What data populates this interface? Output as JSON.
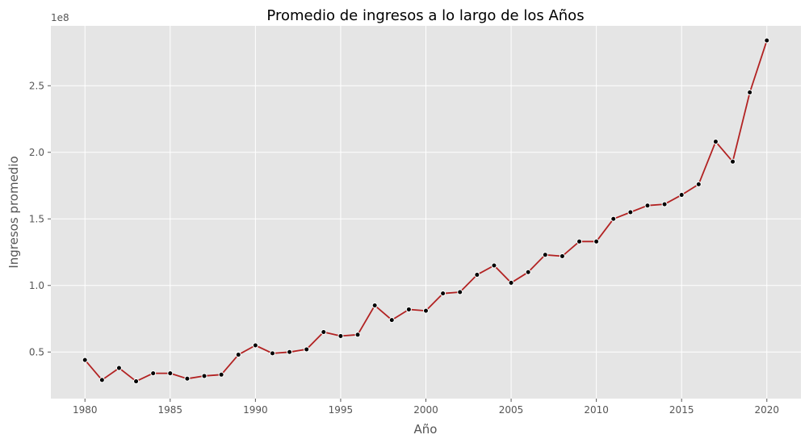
{
  "chart_data": {
    "type": "line",
    "title": "Promedio de ingresos a lo largo de los Años",
    "xlabel": "Año",
    "ylabel": "Ingresos promedio",
    "y_offset_label": "1e8",
    "xlim": [
      1978,
      2022
    ],
    "ylim": [
      0.15,
      2.95
    ],
    "x_ticks": [
      1980,
      1985,
      1990,
      1995,
      2000,
      2005,
      2010,
      2015,
      2020
    ],
    "x_tick_labels": [
      "1980",
      "1985",
      "1990",
      "1995",
      "2000",
      "2005",
      "2010",
      "2015",
      "2020"
    ],
    "y_ticks": [
      0.5,
      1.0,
      1.5,
      2.0,
      2.5
    ],
    "y_tick_labels": [
      "0.5",
      "1.0",
      "1.5",
      "2.0",
      "2.5"
    ],
    "grid": true,
    "line_color": "#b22222",
    "marker_color": "#000000",
    "background_color": "#e5e5e5",
    "series": [
      {
        "x": [
          1980,
          1981,
          1982,
          1983,
          1984,
          1985,
          1986,
          1987,
          1988,
          1989,
          1990,
          1991,
          1992,
          1993,
          1994,
          1995,
          1996,
          1997,
          1998,
          1999,
          2000,
          2001,
          2002,
          2003,
          2004,
          2005,
          2006,
          2007,
          2008,
          2009,
          2010,
          2011,
          2012,
          2013,
          2014,
          2015,
          2016,
          2017,
          2018,
          2019,
          2020
        ],
        "values": [
          0.44,
          0.29,
          0.38,
          0.28,
          0.34,
          0.34,
          0.3,
          0.32,
          0.33,
          0.48,
          0.55,
          0.49,
          0.5,
          0.52,
          0.65,
          0.62,
          0.63,
          0.85,
          0.74,
          0.82,
          0.81,
          0.94,
          0.95,
          1.08,
          1.15,
          1.02,
          1.1,
          1.23,
          1.22,
          1.33,
          1.33,
          1.5,
          1.55,
          1.6,
          1.61,
          1.68,
          1.76,
          2.08,
          1.93,
          2.45,
          2.84
        ]
      }
    ]
  }
}
